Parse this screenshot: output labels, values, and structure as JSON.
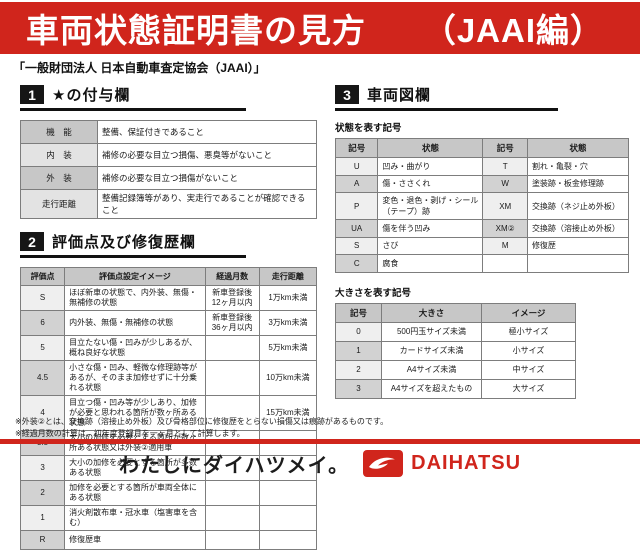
{
  "header": {
    "title": "車両状態証明書の見方",
    "edition": "（JAAI編）",
    "subtitle": "「一般財団法人 日本自動車査定協会（JAAI）」"
  },
  "section1": {
    "number": "1",
    "title": "★の付与欄",
    "rows": [
      [
        "機　能",
        "整備、保証付きであること"
      ],
      [
        "内　装",
        "補修の必要な目立つ損傷、悪臭等がないこと"
      ],
      [
        "外　装",
        "補修の必要な目立つ損傷がないこと"
      ],
      [
        "走行距離",
        "整備記録簿等があり、実走行であることが確認できること"
      ]
    ]
  },
  "section2": {
    "number": "2",
    "title": "評価点及び修復歴欄",
    "headers": [
      "評価点",
      "評価点設定イメージ",
      "経過月数",
      "走行距離"
    ],
    "rows": [
      [
        "S",
        "ほぼ新車の状態で、内外装、無傷・無補修の状態",
        "新車登録後12ヶ月以内",
        "1万km未満"
      ],
      [
        "6",
        "内外装、無傷・無補修の状態",
        "新車登録後36ヶ月以内",
        "3万km未満"
      ],
      [
        "5",
        "目立たない傷・凹みが少しあるが、概ね良好な状態",
        "",
        "5万km未満"
      ],
      [
        "4.5",
        "小さな傷・凹み、軽微な修理跡等があるが、そのまま加修せずに十分乗れる状態",
        "",
        "10万km未満"
      ],
      [
        "4",
        "目立つ傷・凹み等が少しあり、加修が必要と思われる箇所が数ヶ所ある状態",
        "",
        "15万km未満"
      ],
      [
        "3.5",
        "大小の加修を必要とする箇所が数ヶ所ある状態又は外装②適用車",
        "",
        ""
      ],
      [
        "3",
        "大小の加修を必要とする箇所が多数ある状態",
        "",
        ""
      ],
      [
        "2",
        "加修を必要とする箇所が車両全体にある状態",
        "",
        ""
      ],
      [
        "1",
        "消火剤散布車・冠水車（塩害車を含む）",
        "",
        ""
      ],
      [
        "R",
        "修復歴車",
        "",
        ""
      ]
    ]
  },
  "section3": {
    "number": "3",
    "title": "車両図欄",
    "condition_table": {
      "caption": "状態を表す記号",
      "headers": [
        "記号",
        "状態",
        "記号",
        "状態"
      ],
      "rows": [
        [
          "U",
          "凹み・曲がり",
          "T",
          "割れ・亀裂・穴"
        ],
        [
          "A",
          "傷・ささくれ",
          "W",
          "塗装跡・板金修理跡"
        ],
        [
          "P",
          "変色・退色・剥げ・シール（テープ）跡",
          "XM",
          "交換跡（ネジ止め外板）"
        ],
        [
          "UA",
          "傷を伴う凹み",
          "XM②",
          "交換跡（溶接止め外板）"
        ],
        [
          "S",
          "さび",
          "M",
          "修復歴"
        ],
        [
          "C",
          "腐食",
          "",
          ""
        ]
      ]
    },
    "size_table": {
      "caption": "大きさを表す記号",
      "headers": [
        "記号",
        "大きさ",
        "イメージ"
      ],
      "rows": [
        [
          "0",
          "500円玉サイズ未満",
          "極小サイズ"
        ],
        [
          "1",
          "カードサイズ未満",
          "小サイズ"
        ],
        [
          "2",
          "A4サイズ未満",
          "中サイズ"
        ],
        [
          "3",
          "A4サイズを超えたもの",
          "大サイズ"
        ]
      ]
    }
  },
  "footnotes": [
    "※外装②とは、交換跡（溶接止め外板）及び骨格部位に修復歴をとらない損傷又は痕跡があるものです。",
    "※経過月数の計算は、初年度登録月を一ヶ月として計算します。"
  ],
  "footer": {
    "slogan": "わたしにダイハツメイ。",
    "brand": "DAIHATSU"
  },
  "colors": {
    "brand_red": "#d0251c",
    "badge_black": "#161616",
    "table_header_gray": "#c7c7c7",
    "row_alt_gray": "#d2d2d2"
  }
}
